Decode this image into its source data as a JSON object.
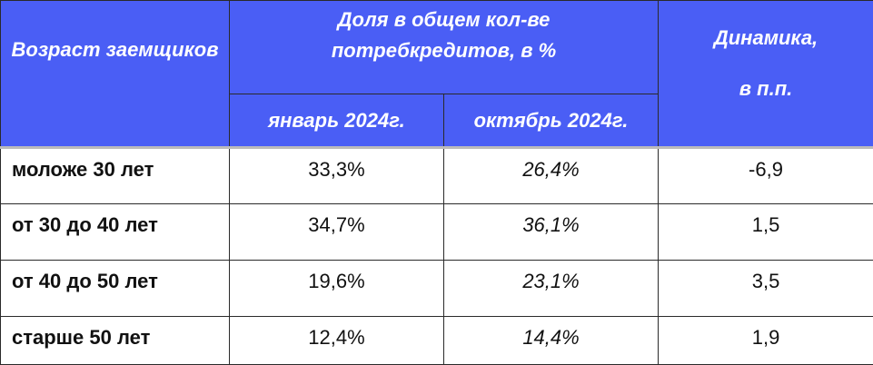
{
  "header": {
    "age": "Возраст заемщиков",
    "share": "Доля в общем кол-ве потребкредитов, в %",
    "jan": "январь 2024г.",
    "oct": "октябрь 2024г.",
    "dynamics": "Динамика,",
    "dynamics_unit": "в п.п."
  },
  "rows": [
    {
      "age": "моложе 30 лет",
      "jan": "33,3%",
      "oct": "26,4%",
      "dyn": "-6,9"
    },
    {
      "age": "от 30 до 40 лет",
      "jan": "34,7%",
      "oct": "36,1%",
      "dyn": "1,5"
    },
    {
      "age": "от 40 до 50 лет",
      "jan": "19,6%",
      "oct": "23,1%",
      "dyn": "3,5"
    },
    {
      "age": "старше 50 лет",
      "jan": "12,4%",
      "oct": "14,4%",
      "dyn": "1,9"
    }
  ],
  "colors": {
    "header_bg": "#4a5ef5",
    "header_text": "#ffffff"
  }
}
